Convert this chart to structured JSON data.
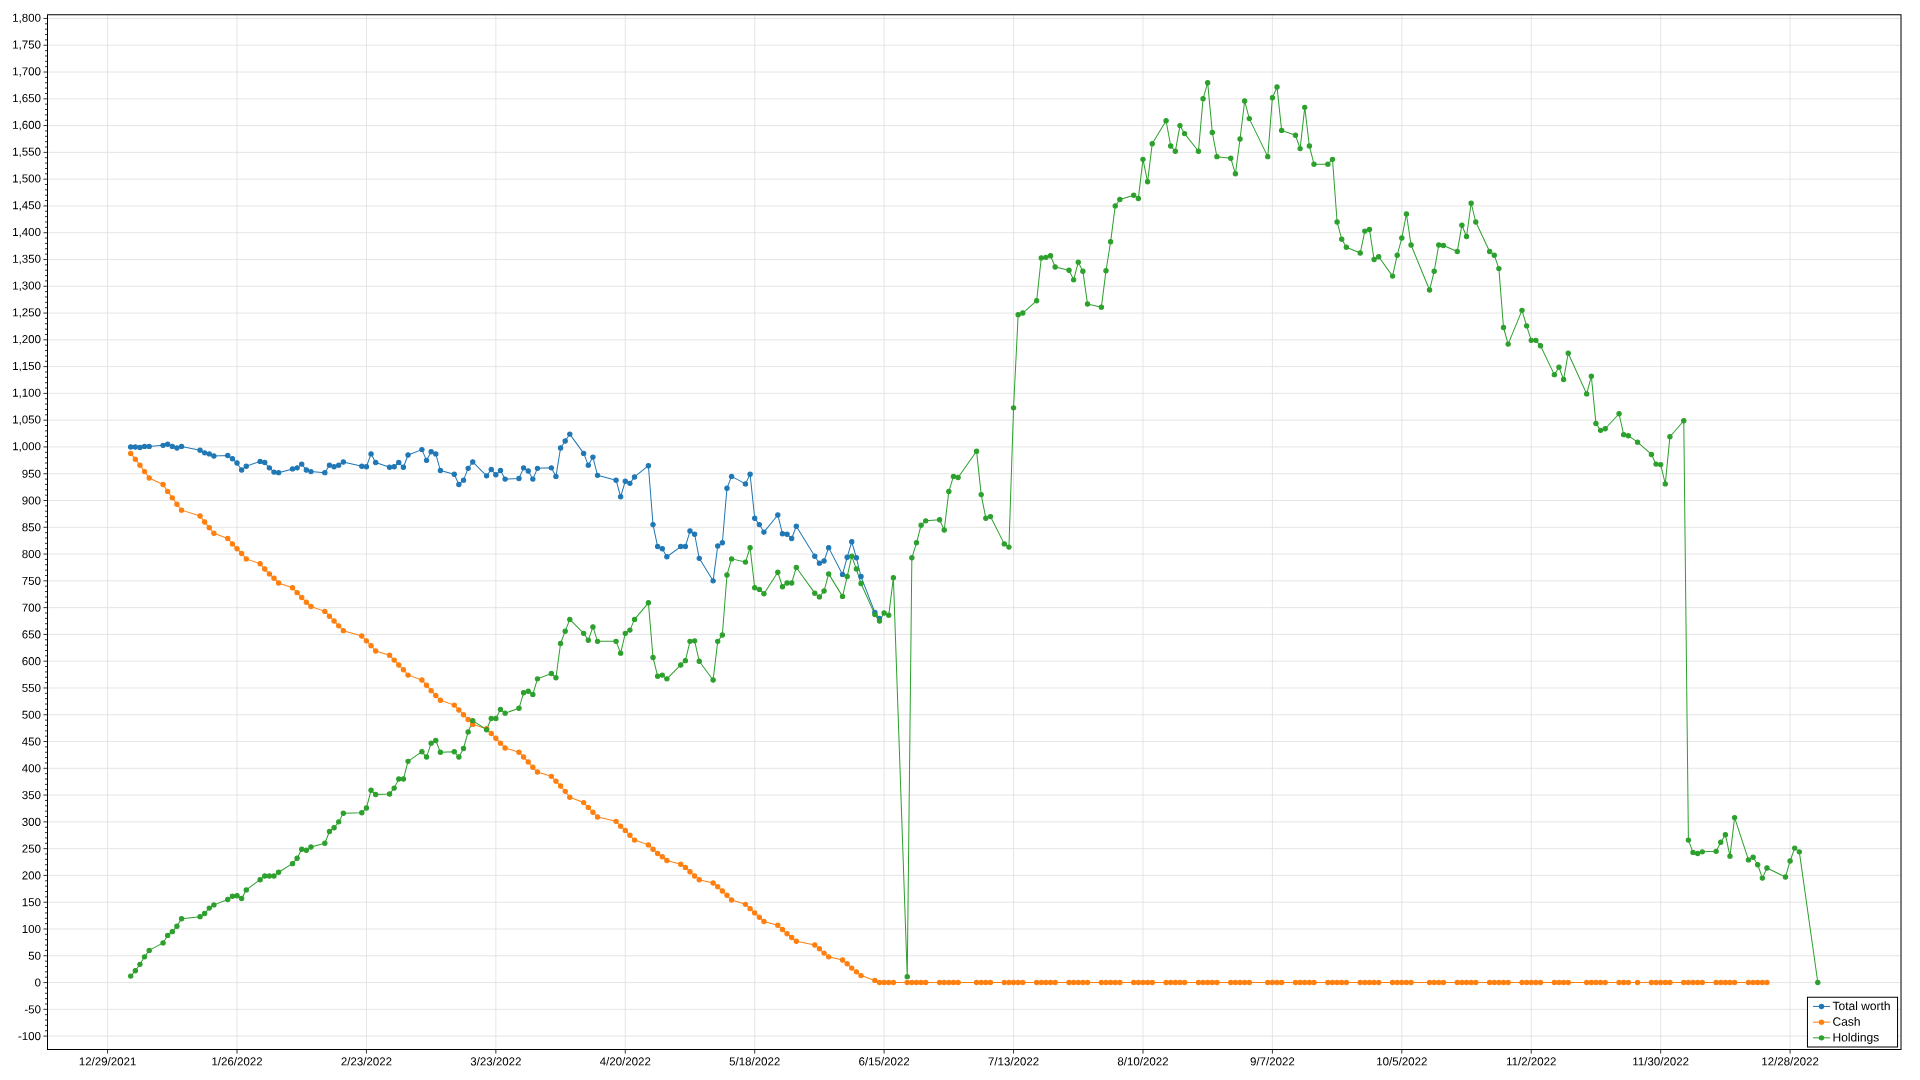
{
  "chart_data": {
    "type": "line",
    "x": [
      "2022-01-03",
      "2022-01-04",
      "2022-01-05",
      "2022-01-06",
      "2022-01-07",
      "2022-01-10",
      "2022-01-11",
      "2022-01-12",
      "2022-01-13",
      "2022-01-14",
      "2022-01-18",
      "2022-01-19",
      "2022-01-20",
      "2022-01-21",
      "2022-01-24",
      "2022-01-25",
      "2022-01-26",
      "2022-01-27",
      "2022-01-28",
      "2022-01-31",
      "2022-02-01",
      "2022-02-02",
      "2022-02-03",
      "2022-02-04",
      "2022-02-07",
      "2022-02-08",
      "2022-02-09",
      "2022-02-10",
      "2022-02-11",
      "2022-02-14",
      "2022-02-15",
      "2022-02-16",
      "2022-02-17",
      "2022-02-18",
      "2022-02-22",
      "2022-02-23",
      "2022-02-24",
      "2022-02-25",
      "2022-02-28",
      "2022-03-01",
      "2022-03-02",
      "2022-03-03",
      "2022-03-04",
      "2022-03-07",
      "2022-03-08",
      "2022-03-09",
      "2022-03-10",
      "2022-03-11",
      "2022-03-14",
      "2022-03-15",
      "2022-03-16",
      "2022-03-17",
      "2022-03-18",
      "2022-03-21",
      "2022-03-22",
      "2022-03-23",
      "2022-03-24",
      "2022-03-25",
      "2022-03-28",
      "2022-03-29",
      "2022-03-30",
      "2022-03-31",
      "2022-04-01",
      "2022-04-04",
      "2022-04-05",
      "2022-04-06",
      "2022-04-07",
      "2022-04-08",
      "2022-04-11",
      "2022-04-12",
      "2022-04-13",
      "2022-04-14",
      "2022-04-18",
      "2022-04-19",
      "2022-04-20",
      "2022-04-21",
      "2022-04-22",
      "2022-04-25",
      "2022-04-26",
      "2022-04-27",
      "2022-04-28",
      "2022-04-29",
      "2022-05-02",
      "2022-05-03",
      "2022-05-04",
      "2022-05-05",
      "2022-05-06",
      "2022-05-09",
      "2022-05-10",
      "2022-05-11",
      "2022-05-12",
      "2022-05-13",
      "2022-05-16",
      "2022-05-17",
      "2022-05-18",
      "2022-05-19",
      "2022-05-20",
      "2022-05-23",
      "2022-05-24",
      "2022-05-25",
      "2022-05-26",
      "2022-05-27",
      "2022-05-31",
      "2022-06-01",
      "2022-06-02",
      "2022-06-03",
      "2022-06-06",
      "2022-06-07",
      "2022-06-08",
      "2022-06-09",
      "2022-06-10",
      "2022-06-13",
      "2022-06-14",
      "2022-06-15",
      "2022-06-16",
      "2022-06-17",
      "2022-06-20",
      "2022-06-21",
      "2022-06-22",
      "2022-06-23",
      "2022-06-24",
      "2022-06-27",
      "2022-06-28",
      "2022-06-29",
      "2022-06-30",
      "2022-07-01",
      "2022-07-05",
      "2022-07-06",
      "2022-07-07",
      "2022-07-08",
      "2022-07-11",
      "2022-07-12",
      "2022-07-13",
      "2022-07-14",
      "2022-07-15",
      "2022-07-18",
      "2022-07-19",
      "2022-07-20",
      "2022-07-21",
      "2022-07-22",
      "2022-07-25",
      "2022-07-26",
      "2022-07-27",
      "2022-07-28",
      "2022-07-29",
      "2022-08-01",
      "2022-08-02",
      "2022-08-03",
      "2022-08-04",
      "2022-08-05",
      "2022-08-08",
      "2022-08-09",
      "2022-08-10",
      "2022-08-11",
      "2022-08-12",
      "2022-08-15",
      "2022-08-16",
      "2022-08-17",
      "2022-08-18",
      "2022-08-19",
      "2022-08-22",
      "2022-08-23",
      "2022-08-24",
      "2022-08-25",
      "2022-08-26",
      "2022-08-29",
      "2022-08-30",
      "2022-08-31",
      "2022-09-01",
      "2022-09-02",
      "2022-09-06",
      "2022-09-07",
      "2022-09-08",
      "2022-09-09",
      "2022-09-12",
      "2022-09-13",
      "2022-09-14",
      "2022-09-15",
      "2022-09-16",
      "2022-09-19",
      "2022-09-20",
      "2022-09-21",
      "2022-09-22",
      "2022-09-23",
      "2022-09-26",
      "2022-09-27",
      "2022-09-28",
      "2022-09-29",
      "2022-09-30",
      "2022-10-03",
      "2022-10-04",
      "2022-10-05",
      "2022-10-06",
      "2022-10-07",
      "2022-10-11",
      "2022-10-12",
      "2022-10-13",
      "2022-10-14",
      "2022-10-17",
      "2022-10-18",
      "2022-10-19",
      "2022-10-20",
      "2022-10-21",
      "2022-10-24",
      "2022-10-25",
      "2022-10-26",
      "2022-10-27",
      "2022-10-28",
      "2022-10-31",
      "2022-11-01",
      "2022-11-02",
      "2022-11-03",
      "2022-11-04",
      "2022-11-07",
      "2022-11-08",
      "2022-11-09",
      "2022-11-10",
      "2022-11-14",
      "2022-11-15",
      "2022-11-16",
      "2022-11-17",
      "2022-11-18",
      "2022-11-21",
      "2022-11-22",
      "2022-11-23",
      "2022-11-25",
      "2022-11-28",
      "2022-11-29",
      "2022-11-30",
      "2022-12-01",
      "2022-12-02",
      "2022-12-05",
      "2022-12-06",
      "2022-12-07",
      "2022-12-08",
      "2022-12-09",
      "2022-12-12",
      "2022-12-13",
      "2022-12-14",
      "2022-12-15",
      "2022-12-16",
      "2022-12-19",
      "2022-12-20",
      "2022-12-21",
      "2022-12-22",
      "2022-12-23",
      "2022-12-27",
      "2022-12-28",
      "2022-12-29",
      "2022-12-30",
      "2023-01-03"
    ],
    "xlim": [
      "2021-12-16",
      "2023-01-21"
    ],
    "ylim": [
      -125,
      1807
    ],
    "xticks": [
      {
        "value": "2021-12-29",
        "label": "12/29/2021"
      },
      {
        "value": "2022-01-26",
        "label": "1/26/2022"
      },
      {
        "value": "2022-02-23",
        "label": "2/23/2022"
      },
      {
        "value": "2022-03-23",
        "label": "3/23/2022"
      },
      {
        "value": "2022-04-20",
        "label": "4/20/2022"
      },
      {
        "value": "2022-05-18",
        "label": "5/18/2022"
      },
      {
        "value": "2022-06-15",
        "label": "6/15/2022"
      },
      {
        "value": "2022-07-13",
        "label": "7/13/2022"
      },
      {
        "value": "2022-08-10",
        "label": "8/10/2022"
      },
      {
        "value": "2022-09-07",
        "label": "9/7/2022"
      },
      {
        "value": "2022-10-05",
        "label": "10/5/2022"
      },
      {
        "value": "2022-11-02",
        "label": "11/2/2022"
      },
      {
        "value": "2022-11-30",
        "label": "11/30/2022"
      },
      {
        "value": "2022-12-28",
        "label": "12/28/2022"
      }
    ],
    "yticks": [
      -100,
      -50,
      0,
      50,
      100,
      150,
      200,
      250,
      300,
      350,
      400,
      450,
      500,
      550,
      600,
      650,
      700,
      750,
      800,
      850,
      900,
      950,
      {
        "value": 1000,
        "label": "1,000"
      },
      {
        "value": 1050,
        "label": "1,050"
      },
      {
        "value": 1100,
        "label": "1,100"
      },
      {
        "value": 1150,
        "label": "1,150"
      },
      {
        "value": 1200,
        "label": "1,200"
      },
      {
        "value": 1250,
        "label": "1,250"
      },
      {
        "value": 1300,
        "label": "1,300"
      },
      {
        "value": 1350,
        "label": "1,350"
      },
      {
        "value": 1400,
        "label": "1,400"
      },
      {
        "value": 1450,
        "label": "1,450"
      },
      {
        "value": 1500,
        "label": "1,500"
      },
      {
        "value": 1550,
        "label": "1,550"
      },
      {
        "value": 1600,
        "label": "1,600"
      },
      {
        "value": 1650,
        "label": "1,650"
      },
      {
        "value": 1700,
        "label": "1,700"
      },
      {
        "value": 1750,
        "label": "1,750"
      },
      {
        "value": 1800,
        "label": "1,800"
      }
    ],
    "grid": true,
    "legend": "bottom right",
    "marker": "circle",
    "line_style": "solid",
    "series": [
      {
        "name": "Total worth",
        "color": "#1f77b4",
        "values": [
          1000,
          1000,
          999,
          1001,
          1001,
          1003,
          1005,
          1001,
          998,
          1001,
          994,
          989,
          987,
          983,
          984,
          978,
          970,
          957,
          964,
          973,
          971,
          961,
          953,
          952,
          959,
          961,
          968,
          957,
          954,
          952,
          966,
          963,
          966,
          972,
          964,
          963,
          987,
          971,
          962,
          963,
          971,
          962,
          985,
          995,
          975,
          991,
          987,
          956,
          949,
          930,
          938,
          960,
          972,
          946,
          958,
          948,
          956,
          940,
          941,
          961,
          955,
          940,
          960,
          961,
          945,
          998,
          1011,
          1024,
          988,
          966,
          981,
          947,
          938,
          907,
          936,
          932,
          944,
          965,
          855,
          814,
          810,
          795,
          814,
          814,
          843,
          837,
          792,
          750,
          815,
          821,
          923,
          945,
          931,
          949,
          867,
          855,
          841,
          873,
          838,
          837,
          829,
          852,
          796,
          783,
          787,
          812,
          762,
          794,
          823,
          793,
          758,
          691,
          680,
          null,
          null,
          null,
          null,
          null,
          null,
          null,
          null,
          null,
          null,
          null,
          null,
          null,
          null,
          null,
          null,
          null,
          null,
          null,
          null,
          null,
          null,
          null,
          null,
          null,
          null,
          null,
          null,
          null,
          null,
          null,
          null,
          null,
          null,
          null,
          null,
          null,
          null,
          null,
          null,
          null,
          null,
          null,
          null,
          null,
          null,
          null,
          null,
          null,
          null,
          null,
          null,
          null,
          null,
          null,
          null,
          null,
          null,
          null,
          null,
          null,
          null,
          null,
          null,
          null,
          null,
          null,
          null,
          null,
          null,
          null,
          null,
          null,
          null,
          null,
          null,
          null,
          null,
          null,
          null,
          null,
          null,
          null,
          null,
          null,
          null,
          null,
          null,
          null,
          null,
          null,
          null,
          null,
          null,
          null,
          null,
          null,
          null,
          null,
          null,
          null,
          null,
          null,
          null,
          null,
          null,
          null,
          null,
          null,
          null,
          null,
          null,
          null,
          null,
          null,
          null,
          null,
          null,
          null,
          null,
          null,
          null,
          null,
          null,
          null,
          null,
          null,
          null,
          null,
          null,
          null,
          null,
          null,
          null,
          null,
          null,
          null,
          null
        ]
      },
      {
        "name": "Cash",
        "color": "#ff7f0e",
        "values": [
          988,
          977,
          966,
          954,
          942,
          930,
          917,
          905,
          893,
          882,
          871,
          860,
          849,
          839,
          829,
          819,
          810,
          801,
          791,
          782,
          772,
          763,
          755,
          746,
          737,
          728,
          719,
          710,
          702,
          693,
          684,
          675,
          666,
          657,
          647,
          638,
          629,
          619,
          611,
          602,
          593,
          584,
          574,
          565,
          555,
          545,
          536,
          527,
          518,
          509,
          500,
          491,
          482,
          474,
          465,
          456,
          447,
          438,
          430,
          421,
          412,
          402,
          393,
          385,
          376,
          367,
          357,
          346,
          336,
          327,
          318,
          309,
          301,
          292,
          284,
          275,
          266,
          257,
          249,
          241,
          235,
          228,
          221,
          215,
          207,
          199,
          192,
          186,
          179,
          171,
          163,
          154,
          146,
          138,
          130,
          122,
          114,
          107,
          99,
          91,
          84,
          77,
          70,
          63,
          55,
          48,
          42,
          35,
          27,
          20,
          13,
          4,
          0,
          0,
          0,
          0,
          0,
          0,
          0,
          0,
          0,
          0,
          0,
          0,
          0,
          0,
          0,
          0,
          0,
          0,
          0,
          0,
          0,
          0,
          0,
          0,
          0,
          0,
          0,
          0,
          0,
          0,
          0,
          0,
          0,
          0,
          0,
          0,
          0,
          0,
          0,
          0,
          0,
          0,
          0,
          0,
          0,
          0,
          0,
          0,
          0,
          0,
          0,
          0,
          0,
          0,
          0,
          0,
          0,
          0,
          0,
          0,
          0,
          0,
          0,
          0,
          0,
          0,
          0,
          0,
          0,
          0,
          0,
          0,
          0,
          0,
          0,
          0,
          0,
          0,
          0,
          0,
          0,
          0,
          0,
          0,
          0,
          0,
          0,
          0,
          0,
          0,
          0,
          0,
          0,
          0,
          0,
          0,
          0,
          0,
          0,
          0,
          0,
          0,
          0,
          0,
          0,
          0,
          0,
          0,
          0,
          0,
          0,
          0,
          0,
          0,
          0,
          0,
          0,
          0,
          0,
          0,
          0,
          0,
          0,
          0,
          0,
          0,
          0,
          0,
          0,
          0,
          0,
          0,
          0,
          0,
          null,
          null,
          null,
          null,
          null
        ]
      },
      {
        "name": "Holdings",
        "color": "#2ca02c",
        "values": [
          12,
          22,
          34,
          48,
          60,
          74,
          88,
          95,
          105,
          119,
          123,
          129,
          139,
          145,
          155,
          161,
          162,
          157,
          173,
          192,
          199,
          199,
          199,
          206,
          222,
          232,
          249,
          247,
          253,
          260,
          282,
          289,
          300,
          316,
          317,
          326,
          359,
          351,
          352,
          363,
          380,
          380,
          413,
          431,
          421,
          447,
          452,
          430,
          431,
          421,
          437,
          468,
          489,
          472,
          493,
          493,
          510,
          503,
          512,
          541,
          544,
          538,
          567,
          577,
          569,
          633,
          656,
          678,
          652,
          639,
          664,
          637,
          637,
          615,
          652,
          658,
          678,
          709,
          607,
          572,
          574,
          567,
          593,
          601,
          637,
          638,
          600,
          565,
          637,
          649,
          761,
          791,
          785,
          812,
          737,
          734,
          726,
          766,
          739,
          746,
          746,
          775,
          727,
          720,
          731,
          763,
          721,
          758,
          796,
          772,
          745,
          687,
          675,
          690,
          686,
          756,
          11,
          793,
          821,
          854,
          862,
          864,
          845,
          917,
          945,
          943,
          992,
          911,
          867,
          870,
          819,
          813,
          1073,
          1247,
          1250,
          1273,
          1353,
          1354,
          1357,
          1336,
          1330,
          1312,
          1345,
          1328,
          1267,
          1261,
          1329,
          1383,
          1450,
          1462,
          1470,
          1464,
          1537,
          1495,
          1566,
          1609,
          1562,
          1552,
          1600,
          1585,
          1552,
          1650,
          1680,
          1587,
          1542,
          1539,
          1510,
          1575,
          1646,
          1613,
          1542,
          1652,
          1672,
          1591,
          1582,
          1557,
          1634,
          1562,
          1528,
          1528,
          1537,
          1420,
          1388,
          1373,
          1362,
          1403,
          1406,
          1350,
          1355,
          1319,
          1358,
          1390,
          1435,
          1377,
          1293,
          1328,
          1377,
          1376,
          1365,
          1414,
          1393,
          1455,
          1420,
          1365,
          1358,
          1333,
          1223,
          1192,
          1255,
          1226,
          1199,
          1199,
          1189,
          1135,
          1149,
          1126,
          1175,
          1099,
          1132,
          1044,
          1031,
          1034,
          1062,
          1023,
          1021,
          1009,
          986,
          968,
          967,
          931,
          1019,
          1049,
          266,
          243,
          241,
          244,
          245,
          262,
          276,
          236,
          308,
          229,
          234,
          220,
          195,
          214,
          197,
          227,
          251,
          244,
          0
        ]
      }
    ]
  }
}
